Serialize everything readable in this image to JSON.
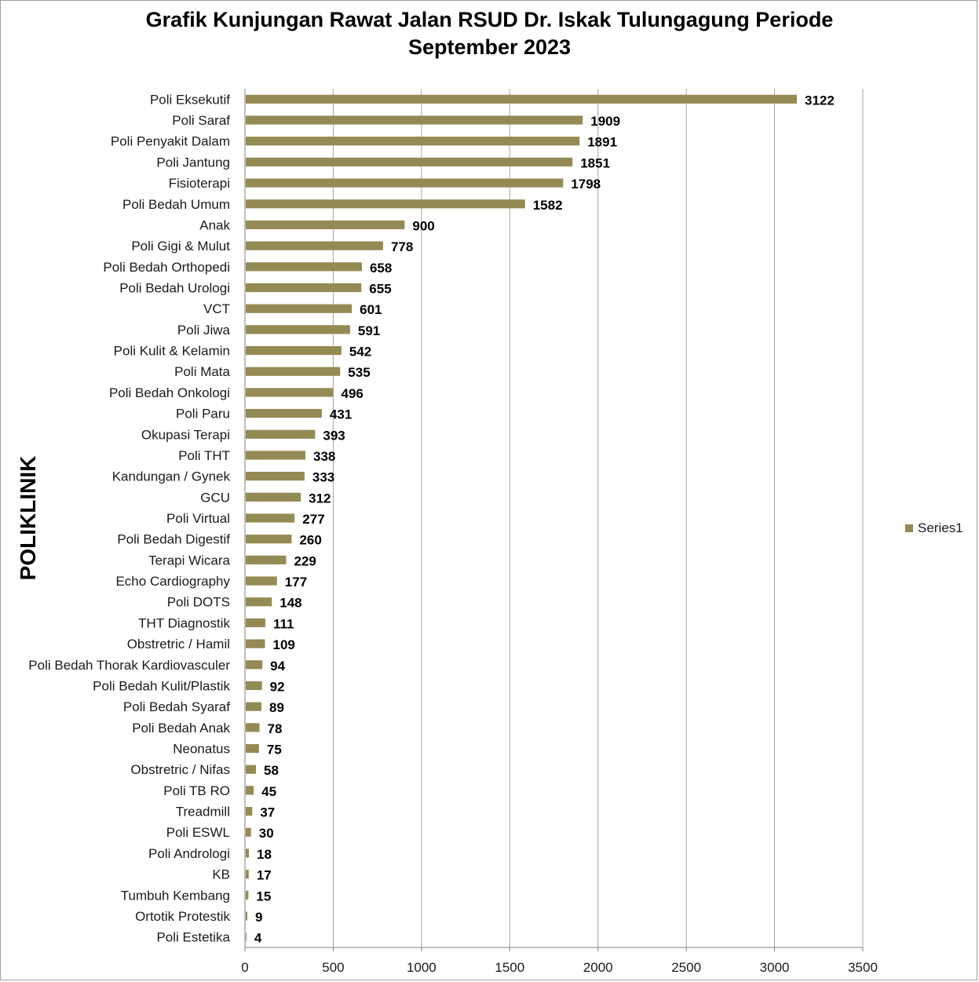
{
  "chart_data": {
    "type": "bar",
    "orientation": "horizontal",
    "title_line1": "Grafik Kunjungan Rawat Jalan RSUD Dr. Iskak Tulungagung Periode",
    "title_line2": "September 2023",
    "ylabel": "POLIKLINIK",
    "xlabel": "",
    "xlim": [
      0,
      3500
    ],
    "xticks": [
      0,
      500,
      1000,
      1500,
      2000,
      2500,
      3000,
      3500
    ],
    "grid": "vertical",
    "legend_position": "right",
    "bar_color": "#948a54",
    "categories": [
      "Poli Eksekutif",
      "Poli Saraf",
      "Poli Penyakit Dalam",
      "Poli Jantung",
      "Fisioterapi",
      "Poli Bedah Umum",
      "Anak",
      "Poli Gigi & Mulut",
      "Poli Bedah Orthopedi",
      "Poli Bedah Urologi",
      "VCT",
      "Poli Jiwa",
      "Poli Kulit & Kelamin",
      "Poli Mata",
      "Poli Bedah Onkologi",
      "Poli Paru",
      "Okupasi Terapi",
      "Poli THT",
      "Kandungan / Gynek",
      "GCU",
      "Poli Virtual",
      "Poli Bedah Digestif",
      "Terapi Wicara",
      "Echo Cardiography",
      "Poli DOTS",
      "THT Diagnostik",
      "Obstretric / Hamil",
      "Poli Bedah Thorak Kardiovasculer",
      "Poli Bedah Kulit/Plastik",
      "Poli Bedah Syaraf",
      "Poli Bedah Anak",
      "Neonatus",
      "Obstretric / Nifas",
      "Poli TB RO",
      "Treadmill",
      "Poli ESWL",
      "Poli Andrologi",
      "KB",
      "Tumbuh Kembang",
      "Ortotik Protestik",
      "Poli Estetika"
    ],
    "series": [
      {
        "name": "Series1",
        "values": [
          3122,
          1909,
          1891,
          1851,
          1798,
          1582,
          900,
          778,
          658,
          655,
          601,
          591,
          542,
          535,
          496,
          431,
          393,
          338,
          333,
          312,
          277,
          260,
          229,
          177,
          148,
          111,
          109,
          94,
          92,
          89,
          78,
          75,
          58,
          45,
          37,
          30,
          18,
          17,
          15,
          9,
          4
        ]
      }
    ]
  }
}
